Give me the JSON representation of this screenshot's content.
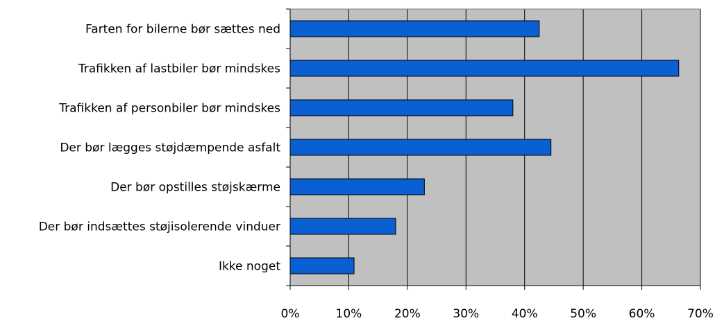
{
  "chart_data": {
    "type": "bar",
    "orientation": "horizontal",
    "categories": [
      "Farten for bilerne bør sættes ned",
      "Trafikken af lastbiler bør mindskes",
      "Trafikken af personbiler bør mindskes",
      "Der bør lægges støjdæmpende asfalt",
      "Der bør opstilles støjskærme",
      "Der bør indsættes støjisolerende vinduer",
      "Ikke noget"
    ],
    "values": [
      42.5,
      66.3,
      38.0,
      44.5,
      22.9,
      18.0,
      10.9
    ],
    "xlim": [
      0,
      70
    ],
    "xticks": [
      "0%",
      "10%",
      "20%",
      "30%",
      "40%",
      "50%",
      "60%",
      "70%"
    ],
    "title": "",
    "xlabel": "",
    "ylabel": "",
    "grid": "vertical",
    "legend": "none",
    "colors": {
      "bar_fill": "#0a5fd3",
      "bar_stroke": "#000000",
      "plot_background": "#c0c0c0",
      "grid": "#000000"
    }
  }
}
